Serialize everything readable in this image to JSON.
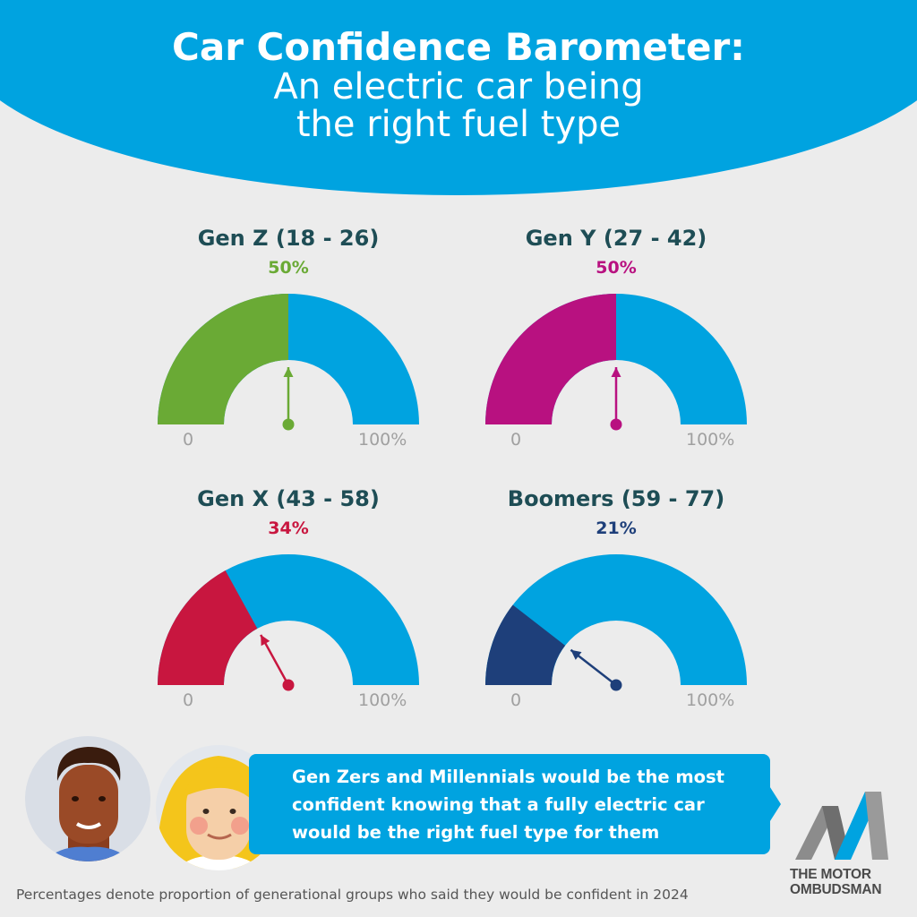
{
  "header": {
    "title_bold": "Car Confidence Barometer:",
    "title_line2": "An electric car being",
    "title_line3": "the right fuel type",
    "background_color": "#00a3e0"
  },
  "chart_data": {
    "type": "gauge",
    "scale_min_label": "0",
    "scale_max_label": "100%",
    "range": [
      0,
      100
    ],
    "track_color": "#00a3e0",
    "gauges": [
      {
        "name": "Gen Z (18 - 26)",
        "value": 50,
        "label": "50%",
        "color": "#6aaa35"
      },
      {
        "name": "Gen Y (27 - 42)",
        "value": 50,
        "label": "50%",
        "color": "#b81180"
      },
      {
        "name": "Gen X (43 - 58)",
        "value": 34,
        "label": "34%",
        "color": "#c8163f"
      },
      {
        "name": "Boomers (59 - 77)",
        "value": 21,
        "label": "21%",
        "color": "#1e3f7a"
      }
    ]
  },
  "callout": {
    "text": "Gen Zers and Millennials would be the most confident knowing that a fully electric car would be the right fuel type for them"
  },
  "footnote": "Percentages denote proportion of generational groups who said they would be confident in 2024",
  "logo": {
    "line1": "THE MOTOR",
    "line2": "OMBUDSMAN"
  },
  "icons": [
    "man-avatar-icon",
    "woman-avatar-icon",
    "motor-ombudsman-logo-icon"
  ]
}
